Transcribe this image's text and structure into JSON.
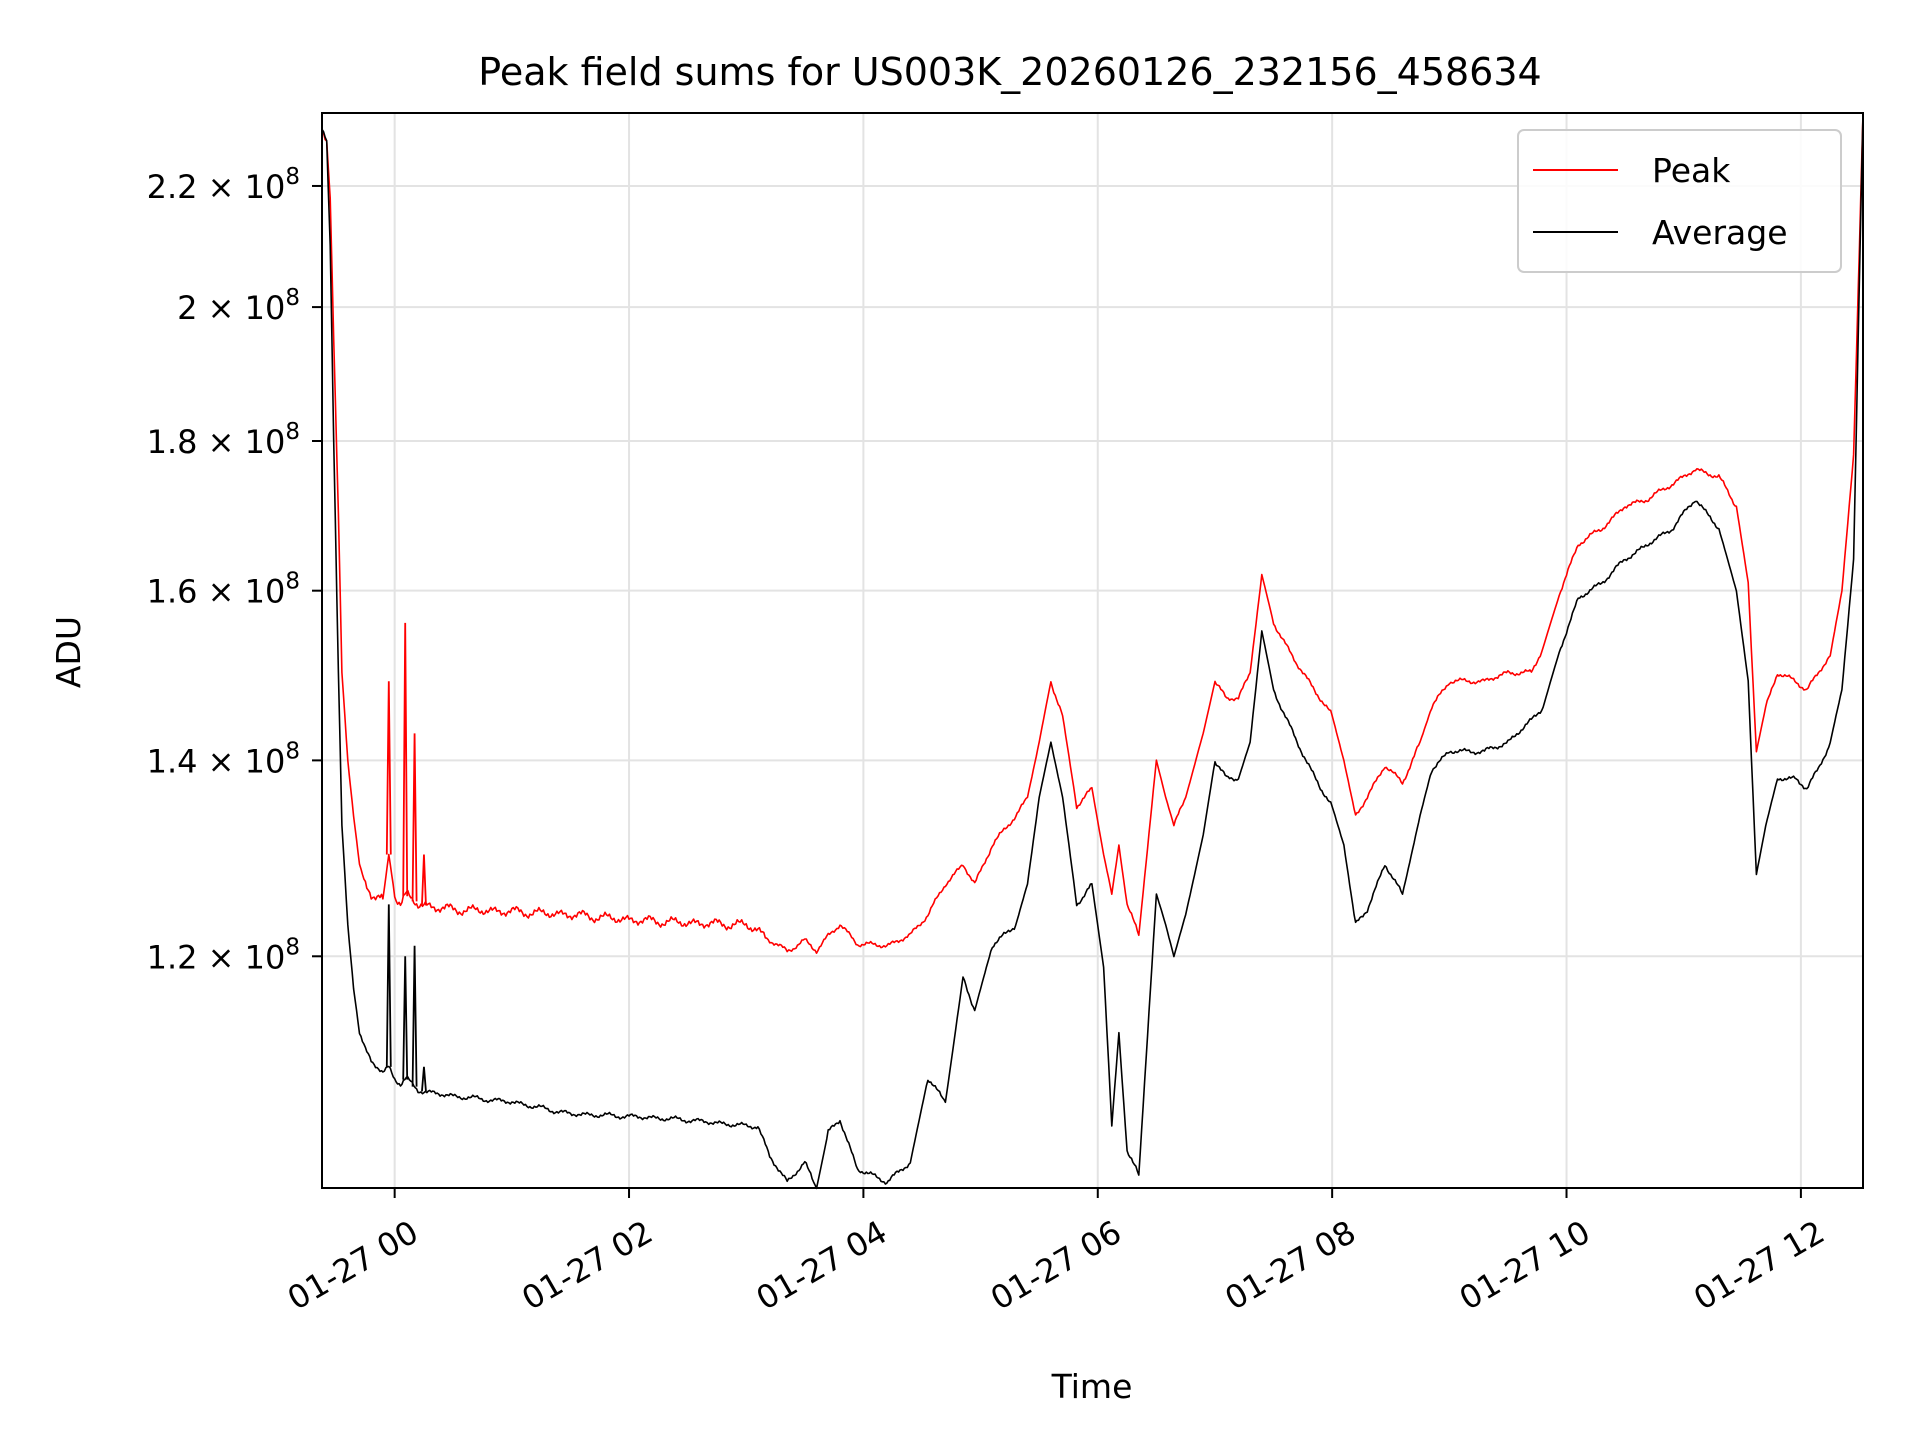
{
  "chart_data": {
    "type": "line",
    "title": "Peak field sums for US003K_20260126_232156_458634",
    "xlabel": "Time",
    "ylabel": "ADU",
    "x_unit": "hours since 2026-01-27 00:00",
    "xlim": [
      -0.62,
      12.53
    ],
    "ylim": [
      100000000.0,
      233000000.0
    ],
    "yscale": "log",
    "grid": true,
    "legend_position": "upper-right",
    "x_ticks": [
      {
        "value": 0,
        "label": "01-27 00"
      },
      {
        "value": 2,
        "label": "01-27 02"
      },
      {
        "value": 4,
        "label": "01-27 04"
      },
      {
        "value": 6,
        "label": "01-27 06"
      },
      {
        "value": 8,
        "label": "01-27 08"
      },
      {
        "value": 10,
        "label": "01-27 10"
      },
      {
        "value": 12,
        "label": "01-27 12"
      }
    ],
    "y_ticks": [
      {
        "value": 120000000.0,
        "mantissa": "1.2",
        "exponent": "8"
      },
      {
        "value": 140000000.0,
        "mantissa": "1.4",
        "exponent": "8"
      },
      {
        "value": 160000000.0,
        "mantissa": "1.6",
        "exponent": "8"
      },
      {
        "value": 180000000.0,
        "mantissa": "1.8",
        "exponent": "8"
      },
      {
        "value": 200000000.0,
        "mantissa": "2",
        "exponent": "8"
      },
      {
        "value": 220000000.0,
        "mantissa": "2.2",
        "exponent": "8"
      }
    ],
    "series": [
      {
        "name": "Peak",
        "color": "#ff0000",
        "x": [
          -0.62,
          -0.58,
          -0.55,
          -0.52,
          -0.48,
          -0.45,
          -0.4,
          -0.35,
          -0.3,
          -0.25,
          -0.2,
          -0.15,
          -0.1,
          -0.05,
          0.0,
          0.05,
          0.1,
          0.15,
          0.2,
          0.3,
          0.5,
          1.0,
          1.5,
          2.0,
          2.5,
          3.0,
          3.1,
          3.2,
          3.35,
          3.5,
          3.6,
          3.7,
          3.8,
          3.95,
          4.2,
          4.4,
          4.55,
          4.7,
          4.85,
          4.95,
          5.1,
          5.3,
          5.4,
          5.5,
          5.6,
          5.7,
          5.82,
          5.95,
          6.05,
          6.12,
          6.18,
          6.25,
          6.35,
          6.5,
          6.58,
          6.65,
          6.75,
          6.9,
          7.0,
          7.1,
          7.2,
          7.3,
          7.4,
          7.5,
          7.7,
          7.9,
          8.0,
          8.1,
          8.2,
          8.3,
          8.45,
          8.6,
          8.75,
          8.85,
          9.0,
          9.3,
          9.5,
          9.7,
          9.8,
          9.95,
          10.1,
          10.3,
          10.5,
          10.7,
          10.9,
          11.1,
          11.3,
          11.45,
          11.55,
          11.62,
          11.7,
          11.8,
          11.95,
          12.05,
          12.15,
          12.25,
          12.35,
          12.45,
          12.5,
          12.53
        ],
        "values": [
          230000000.0,
          228000000.0,
          218000000.0,
          195000000.0,
          170000000.0,
          150000000.0,
          140000000.0,
          134000000.0,
          129000000.0,
          127000000.0,
          126000000.0,
          125800000.0,
          125500000.0,
          130000000.0,
          126000000.0,
          125000000.0,
          126000000.0,
          125500000.0,
          125000000.0,
          124800000.0,
          124500000.0,
          124300000.0,
          124000000.0,
          123500000.0,
          123200000.0,
          123000000.0,
          122500000.0,
          121500000.0,
          120500000.0,
          121500000.0,
          120500000.0,
          122000000.0,
          123000000.0,
          121200000.0,
          121000000.0,
          122000000.0,
          124000000.0,
          127000000.0,
          129000000.0,
          127000000.0,
          131000000.0,
          134000000.0,
          136000000.0,
          142000000.0,
          149000000.0,
          145000000.0,
          135000000.0,
          137000000.0,
          130000000.0,
          126000000.0,
          131000000.0,
          125000000.0,
          122000000.0,
          140000000.0,
          136000000.0,
          133000000.0,
          136000000.0,
          143000000.0,
          149000000.0,
          147000000.0,
          147000000.0,
          150000000.0,
          162000000.0,
          156000000.0,
          151000000.0,
          147000000.0,
          145000000.0,
          140000000.0,
          134000000.0,
          136000000.0,
          139500000.0,
          137500000.0,
          142000000.0,
          146000000.0,
          149000000.0,
          149000000.0,
          150000000.0,
          150000000.0,
          153000000.0,
          160000000.0,
          166000000.0,
          168000000.0,
          171000000.0,
          172000000.0,
          174000000.0,
          176000000.0,
          175000000.0,
          171000000.0,
          161000000.0,
          141000000.0,
          146000000.0,
          150000000.0,
          149000000.0,
          148000000.0,
          150000000.0,
          152000000.0,
          160000000.0,
          178000000.0,
          210000000.0,
          233000000.0
        ],
        "spikes": [
          {
            "x": -0.05,
            "value": 149000000.0
          },
          {
            "x": 0.09,
            "value": 156000000.0
          },
          {
            "x": 0.17,
            "value": 143000000.0
          },
          {
            "x": 0.25,
            "value": 130000000.0
          }
        ]
      },
      {
        "name": "Average",
        "color": "#000000",
        "x": [
          -0.62,
          -0.58,
          -0.55,
          -0.52,
          -0.48,
          -0.45,
          -0.4,
          -0.35,
          -0.3,
          -0.25,
          -0.2,
          -0.15,
          -0.1,
          -0.05,
          0.0,
          0.05,
          0.1,
          0.15,
          0.2,
          0.3,
          0.5,
          1.0,
          1.5,
          2.0,
          2.5,
          3.0,
          3.1,
          3.2,
          3.35,
          3.5,
          3.6,
          3.7,
          3.8,
          3.95,
          4.2,
          4.4,
          4.55,
          4.7,
          4.85,
          4.95,
          5.1,
          5.3,
          5.4,
          5.5,
          5.6,
          5.7,
          5.82,
          5.95,
          6.05,
          6.12,
          6.18,
          6.25,
          6.35,
          6.5,
          6.58,
          6.65,
          6.75,
          6.9,
          7.0,
          7.1,
          7.2,
          7.3,
          7.4,
          7.5,
          7.7,
          7.9,
          8.0,
          8.1,
          8.2,
          8.3,
          8.45,
          8.6,
          8.75,
          8.85,
          9.0,
          9.3,
          9.5,
          9.7,
          9.8,
          9.95,
          10.1,
          10.3,
          10.5,
          10.7,
          10.9,
          11.1,
          11.3,
          11.45,
          11.55,
          11.62,
          11.7,
          11.8,
          11.95,
          12.05,
          12.15,
          12.25,
          12.35,
          12.45,
          12.5,
          12.53
        ],
        "values": [
          230000000.0,
          228000000.0,
          210000000.0,
          180000000.0,
          150000000.0,
          133000000.0,
          123000000.0,
          117000000.0,
          113000000.0,
          111500000.0,
          110500000.0,
          110000000.0,
          109500000.0,
          110000000.0,
          109000000.0,
          108500000.0,
          109000000.0,
          108500000.0,
          108000000.0,
          107800000.0,
          107500000.0,
          107000000.0,
          106000000.0,
          105800000.0,
          105500000.0,
          105000000.0,
          105000000.0,
          102500000.0,
          100500000.0,
          102000000.0,
          100000000.0,
          104500000.0,
          105500000.0,
          101500000.0,
          100500000.0,
          102000000.0,
          109000000.0,
          107000000.0,
          118000000.0,
          115000000.0,
          121000000.0,
          123000000.0,
          127000000.0,
          136000000.0,
          142000000.0,
          136000000.0,
          125000000.0,
          127000000.0,
          119000000.0,
          105000000.0,
          113000000.0,
          103000000.0,
          101000000.0,
          126000000.0,
          123000000.0,
          120000000.0,
          124000000.0,
          132000000.0,
          140000000.0,
          138000000.0,
          138000000.0,
          142000000.0,
          155000000.0,
          148000000.0,
          142000000.0,
          137000000.0,
          135000000.0,
          131000000.0,
          123000000.0,
          124500000.0,
          129000000.0,
          126000000.0,
          134000000.0,
          139000000.0,
          141000000.0,
          141000000.0,
          142000000.0,
          144500000.0,
          146000000.0,
          153000000.0,
          159000000.0,
          161000000.0,
          164000000.0,
          166000000.0,
          168000000.0,
          172000000.0,
          168000000.0,
          160000000.0,
          149000000.0,
          128000000.0,
          133000000.0,
          138000000.0,
          138000000.0,
          137000000.0,
          139000000.0,
          142000000.0,
          148000000.0,
          164000000.0,
          205000000.0,
          233000000.0
        ],
        "spikes": [
          {
            "x": -0.05,
            "value": 125000000.0
          },
          {
            "x": 0.09,
            "value": 120000000.0
          },
          {
            "x": 0.17,
            "value": 121000000.0
          },
          {
            "x": 0.25,
            "value": 110000000.0
          }
        ]
      }
    ]
  }
}
